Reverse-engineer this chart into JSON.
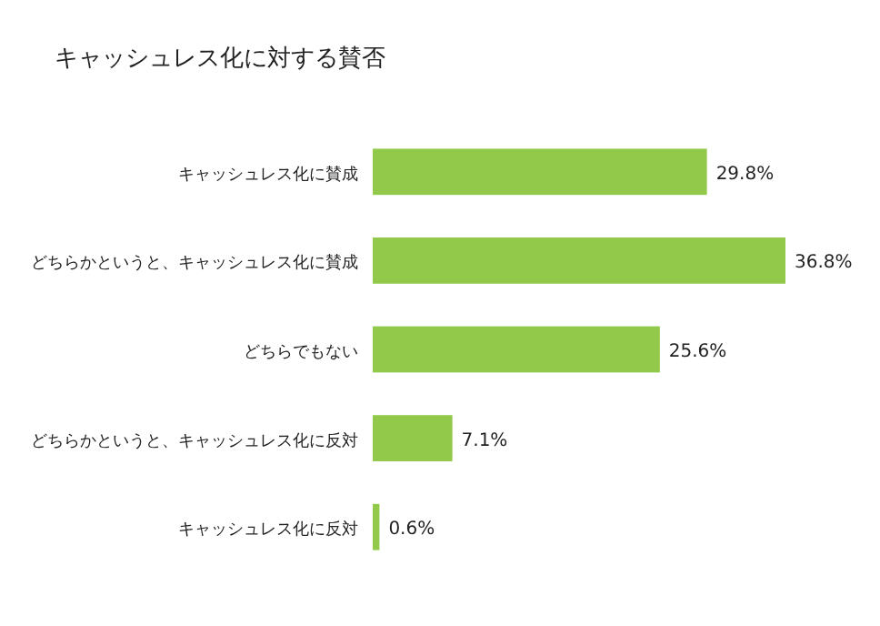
{
  "chart_data": {
    "type": "bar",
    "orientation": "horizontal",
    "title": "キャッシュレス化に対する賛否",
    "categories": [
      "キャッシュレス化に賛成",
      "どちらかというと、キャッシュレス化に賛成",
      "どちらでもない",
      "どちらかというと、キャッシュレス化に反対",
      "キャッシュレス化に反対"
    ],
    "values": [
      29.8,
      36.8,
      25.6,
      7.1,
      0.6
    ],
    "value_labels": [
      "29.8%",
      "36.8%",
      "25.6%",
      "7.1%",
      "0.6%"
    ],
    "color": "#92c94a"
  }
}
